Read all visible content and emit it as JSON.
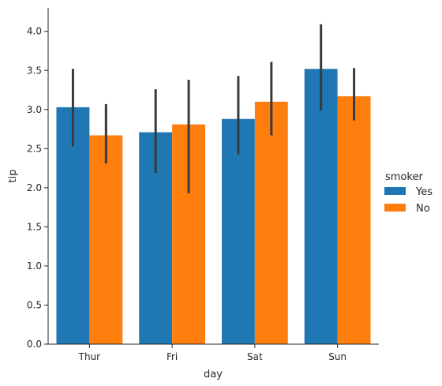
{
  "chart_data": {
    "type": "bar",
    "title": "",
    "xlabel": "day",
    "ylabel": "tip",
    "categories": [
      "Thur",
      "Fri",
      "Sat",
      "Sun"
    ],
    "ylim": [
      0,
      4.3
    ],
    "yticks": [
      "0.0",
      "0.5",
      "1.0",
      "1.5",
      "2.0",
      "2.5",
      "3.0",
      "3.5",
      "4.0"
    ],
    "grid": false,
    "legend": {
      "title": "smoker",
      "placement": "right"
    },
    "series": [
      {
        "name": "Yes",
        "color": "#1f77b4",
        "values": [
          3.03,
          2.71,
          2.88,
          3.52
        ],
        "ci": [
          [
            2.53,
            3.52
          ],
          [
            2.19,
            3.26
          ],
          [
            2.43,
            3.43
          ],
          [
            2.99,
            4.09
          ]
        ]
      },
      {
        "name": "No",
        "color": "#ff7f0e",
        "values": [
          2.67,
          2.81,
          3.1,
          3.17
        ],
        "ci": [
          [
            2.31,
            3.07
          ],
          [
            1.93,
            3.38
          ],
          [
            2.67,
            3.61
          ],
          [
            2.86,
            3.53
          ]
        ]
      }
    ],
    "error_bar_color": "#3a3a3a"
  }
}
